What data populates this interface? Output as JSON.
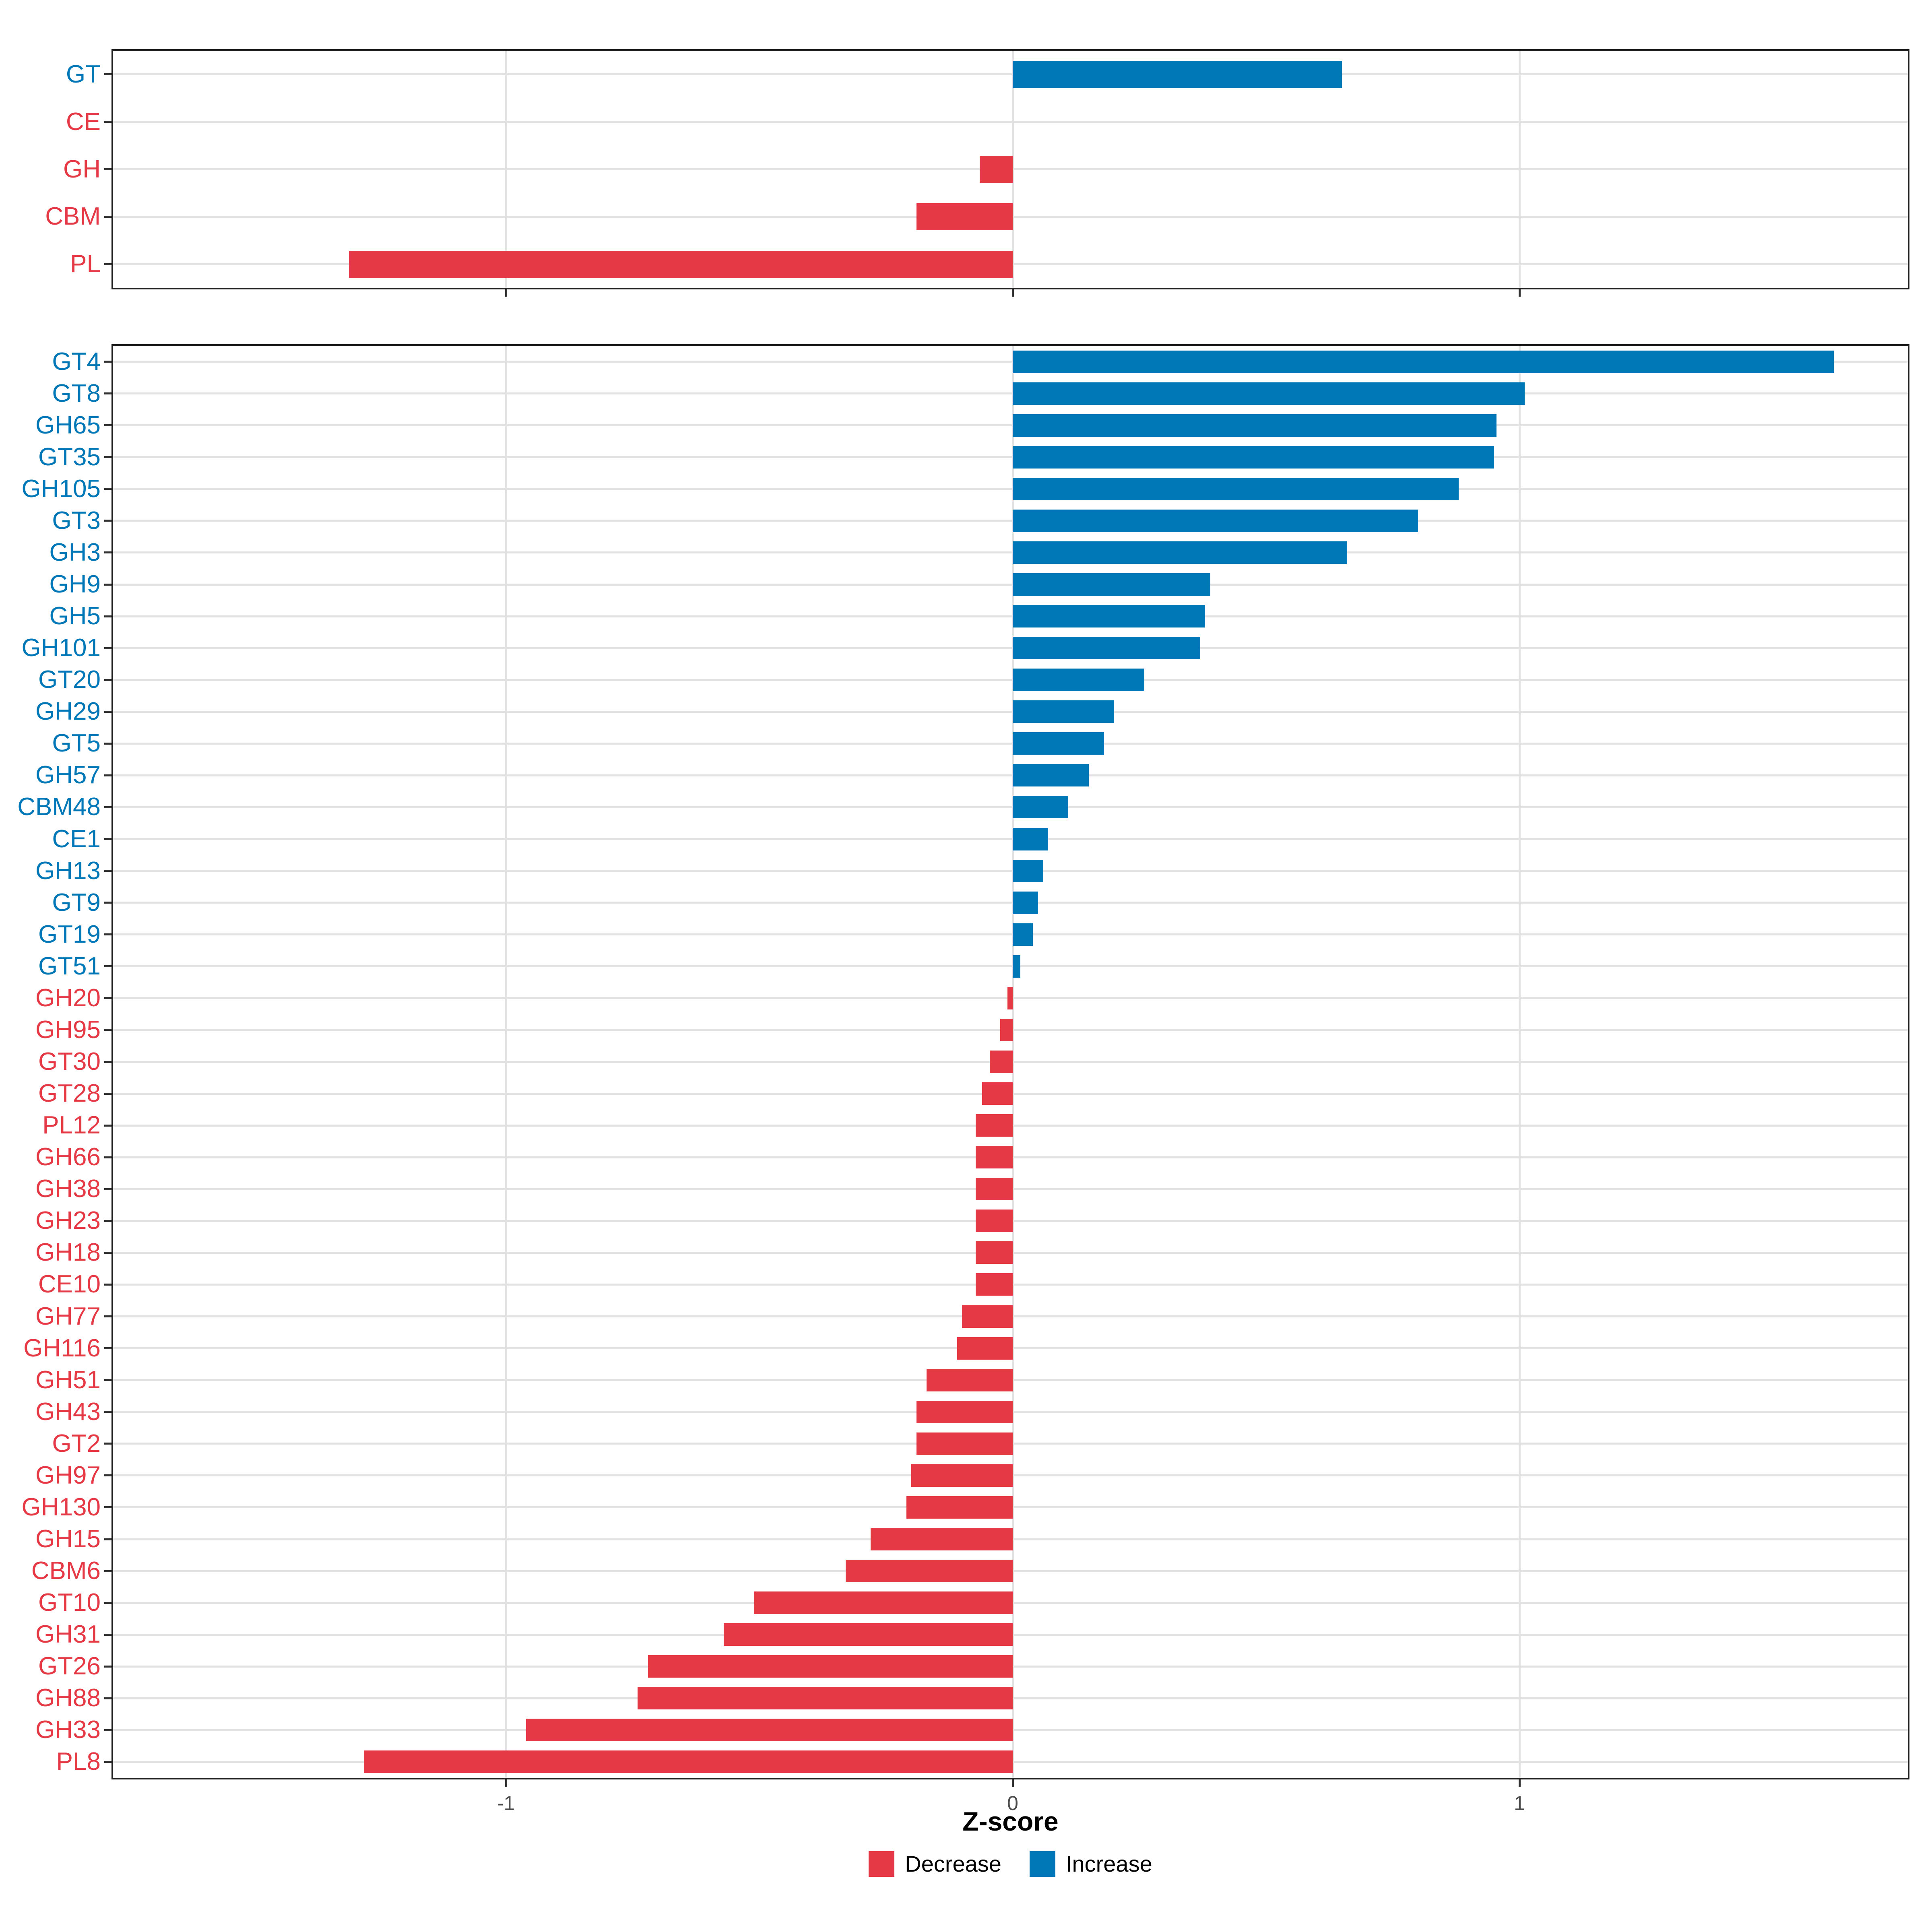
{
  "axis": {
    "xlabel": "Z-score",
    "x_ticks": [
      -1,
      0,
      1
    ],
    "x_tick_labels": [
      "-1",
      "0",
      "1"
    ],
    "xlim": [
      -1.78,
      1.77
    ],
    "grid": "major vertical at ticks, horizontal at each category"
  },
  "legend": {
    "position": "bottom-center",
    "items": [
      {
        "label": "Decrease",
        "color": "#E63946"
      },
      {
        "label": "Increase",
        "color": "#0077B6"
      }
    ]
  },
  "colors": {
    "increase": "#0077B6",
    "decrease": "#E63946",
    "grid": "#E2E2E2",
    "panel_border": "#1F1F1F",
    "tick_mark": "#333333",
    "tick_text": "#4D4D4D"
  },
  "chart_data": [
    {
      "type": "bar",
      "orientation": "horizontal",
      "name": "cazyme-class",
      "title": "",
      "xlabel": "Z-score",
      "ylabel": "",
      "xlim": [
        -1.78,
        1.77
      ],
      "categories": [
        "GT",
        "CE",
        "GH",
        "CBM",
        "PL"
      ],
      "values": [
        0.65,
        0.0,
        -0.065,
        -0.19,
        -1.31
      ],
      "color_rule": "value > 0 -> increase color (blue), else decrease color (red); category labels colored the same way"
    },
    {
      "type": "bar",
      "orientation": "horizontal",
      "name": "cazyme-family",
      "title": "",
      "xlabel": "Z-score",
      "ylabel": "",
      "xlim": [
        -1.78,
        1.77
      ],
      "categories": [
        "GT4",
        "GT8",
        "GH65",
        "GT35",
        "GH105",
        "GT3",
        "GH3",
        "GH9",
        "GH5",
        "GH101",
        "GT20",
        "GH29",
        "GT5",
        "GH57",
        "CBM48",
        "CE1",
        "GH13",
        "GT9",
        "GT19",
        "GT51",
        "GH20",
        "GH95",
        "GT30",
        "GT28",
        "PL12",
        "GH66",
        "GH38",
        "GH23",
        "GH18",
        "CE10",
        "GH77",
        "GH116",
        "GH51",
        "GH43",
        "GT2",
        "GH97",
        "GH130",
        "GH15",
        "CBM6",
        "GT10",
        "GH31",
        "GT26",
        "GH88",
        "GH33",
        "PL8"
      ],
      "values": [
        1.62,
        1.01,
        0.955,
        0.95,
        0.88,
        0.8,
        0.66,
        0.39,
        0.38,
        0.37,
        0.26,
        0.2,
        0.18,
        0.15,
        0.11,
        0.07,
        0.06,
        0.05,
        0.04,
        0.015,
        -0.01,
        -0.025,
        -0.045,
        -0.06,
        -0.073,
        -0.073,
        -0.073,
        -0.073,
        -0.073,
        -0.073,
        -0.1,
        -0.11,
        -0.17,
        -0.19,
        -0.19,
        -0.2,
        -0.21,
        -0.28,
        -0.33,
        -0.51,
        -0.57,
        -0.72,
        -0.74,
        -0.96,
        -1.28
      ],
      "color_rule": "value > 0 -> increase color (blue), else decrease color (red); category labels colored the same way"
    }
  ]
}
